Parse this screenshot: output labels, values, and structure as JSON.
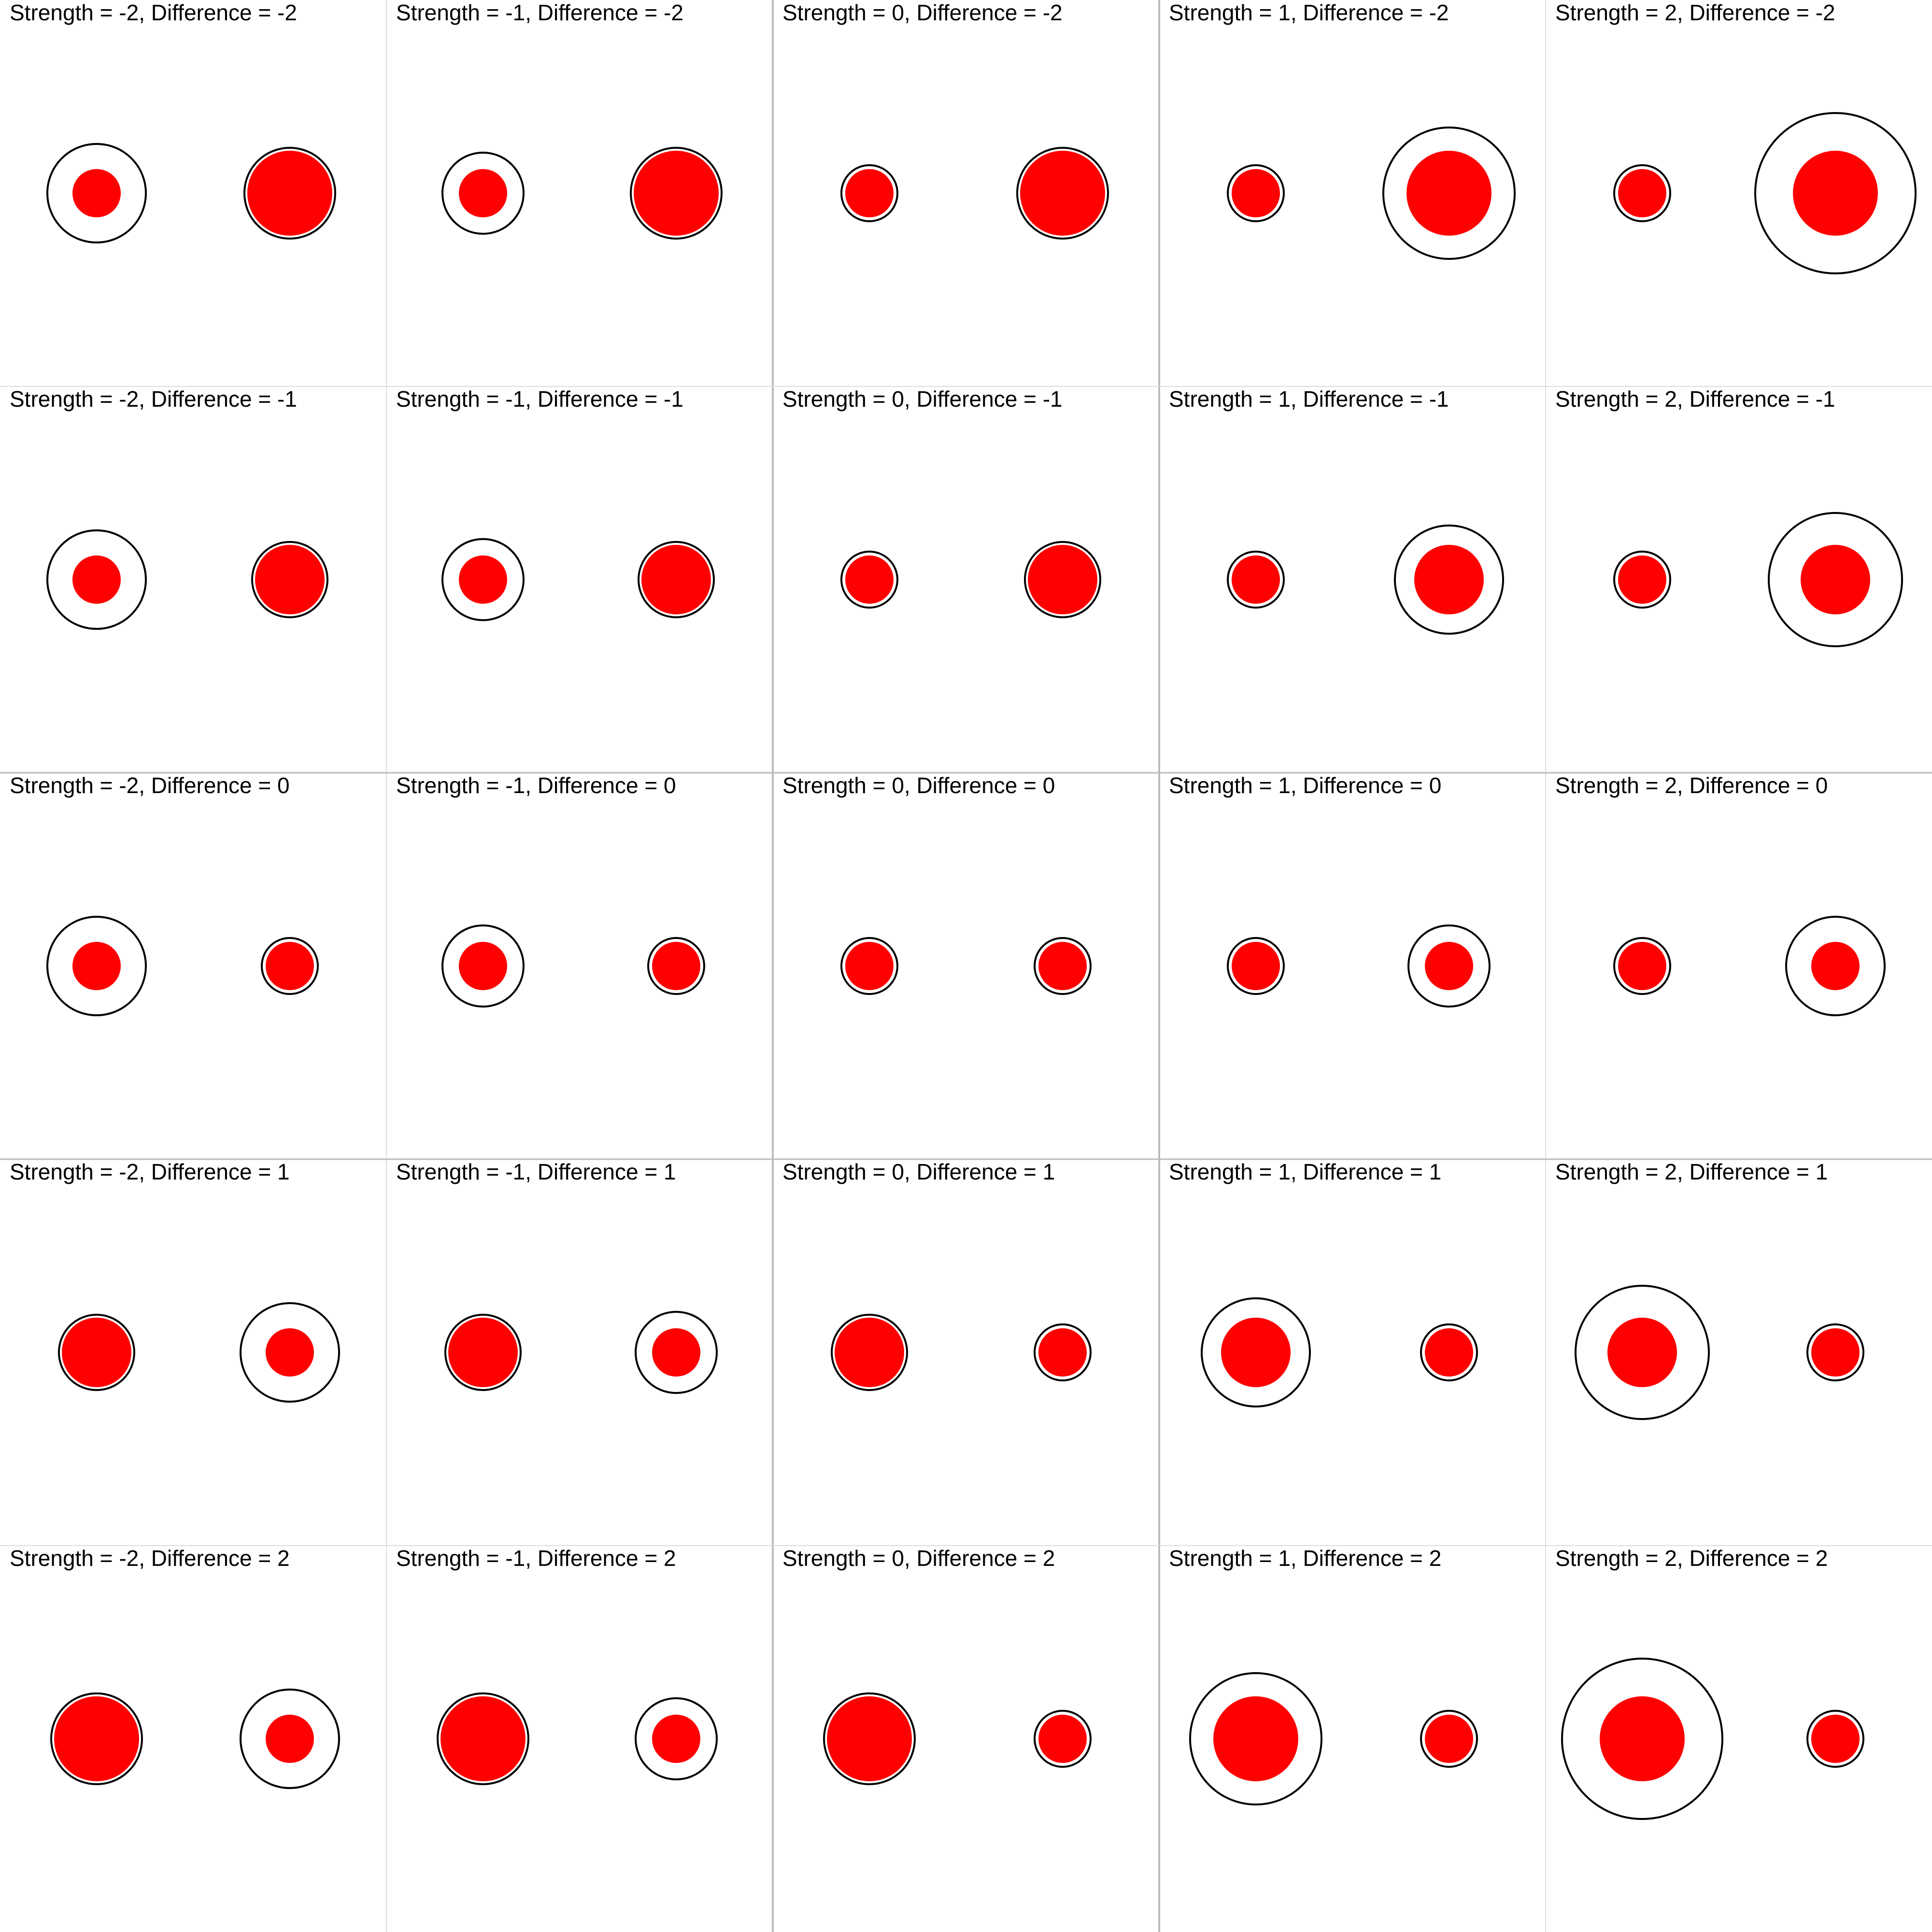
{
  "colors": {
    "background": "#ffffff",
    "separator": "#dddddd",
    "heavy_separator": "#bbbbbb",
    "fill": "#ff0000",
    "outline": "#000000",
    "text": "#000000"
  },
  "panels": [
    {
      "title": "Strength = -2, Difference = -2",
      "left": {
        "fill": 0.25,
        "ring": 0.51
      },
      "right": {
        "fill": 0.44,
        "ring": 0.47
      }
    },
    {
      "title": "Strength = -1, Difference = -2",
      "left": {
        "fill": 0.25,
        "ring": 0.42
      },
      "right": {
        "fill": 0.44,
        "ring": 0.47
      }
    },
    {
      "title": "Strength = 0, Difference = -2",
      "left": {
        "fill": 0.25,
        "ring": 0.29
      },
      "right": {
        "fill": 0.44,
        "ring": 0.47
      }
    },
    {
      "title": "Strength = 1, Difference = -2",
      "left": {
        "fill": 0.25,
        "ring": 0.29
      },
      "right": {
        "fill": 0.44,
        "ring": 0.68
      }
    },
    {
      "title": "Strength = 2, Difference = -2",
      "left": {
        "fill": 0.25,
        "ring": 0.29
      },
      "right": {
        "fill": 0.44,
        "ring": 0.83
      }
    },
    {
      "title": "Strength = -2, Difference = -1",
      "left": {
        "fill": 0.25,
        "ring": 0.51
      },
      "right": {
        "fill": 0.36,
        "ring": 0.39
      }
    },
    {
      "title": "Strength = -1, Difference = -1",
      "left": {
        "fill": 0.25,
        "ring": 0.42
      },
      "right": {
        "fill": 0.36,
        "ring": 0.39
      }
    },
    {
      "title": "Strength = 0, Difference = -1",
      "left": {
        "fill": 0.25,
        "ring": 0.29
      },
      "right": {
        "fill": 0.36,
        "ring": 0.39
      }
    },
    {
      "title": "Strength = 1, Difference = -1",
      "left": {
        "fill": 0.25,
        "ring": 0.29
      },
      "right": {
        "fill": 0.36,
        "ring": 0.56
      }
    },
    {
      "title": "Strength = 2, Difference = -1",
      "left": {
        "fill": 0.25,
        "ring": 0.29
      },
      "right": {
        "fill": 0.36,
        "ring": 0.69
      }
    },
    {
      "title": "Strength = -2, Difference = 0",
      "left": {
        "fill": 0.25,
        "ring": 0.51
      },
      "right": {
        "fill": 0.25,
        "ring": 0.29
      }
    },
    {
      "title": "Strength = -1, Difference = 0",
      "left": {
        "fill": 0.25,
        "ring": 0.42
      },
      "right": {
        "fill": 0.25,
        "ring": 0.29
      }
    },
    {
      "title": "Strength = 0, Difference = 0",
      "left": {
        "fill": 0.25,
        "ring": 0.29
      },
      "right": {
        "fill": 0.25,
        "ring": 0.29
      }
    },
    {
      "title": "Strength = 1, Difference = 0",
      "left": {
        "fill": 0.25,
        "ring": 0.29
      },
      "right": {
        "fill": 0.25,
        "ring": 0.42
      }
    },
    {
      "title": "Strength = 2, Difference = 0",
      "left": {
        "fill": 0.25,
        "ring": 0.29
      },
      "right": {
        "fill": 0.25,
        "ring": 0.51
      }
    },
    {
      "title": "Strength = -2, Difference = 1",
      "left": {
        "fill": 0.36,
        "ring": 0.39
      },
      "right": {
        "fill": 0.25,
        "ring": 0.51
      }
    },
    {
      "title": "Strength = -1, Difference = 1",
      "left": {
        "fill": 0.36,
        "ring": 0.39
      },
      "right": {
        "fill": 0.25,
        "ring": 0.42
      }
    },
    {
      "title": "Strength = 0, Difference = 1",
      "left": {
        "fill": 0.36,
        "ring": 0.39
      },
      "right": {
        "fill": 0.25,
        "ring": 0.29
      }
    },
    {
      "title": "Strength = 1, Difference = 1",
      "left": {
        "fill": 0.36,
        "ring": 0.56
      },
      "right": {
        "fill": 0.25,
        "ring": 0.29
      }
    },
    {
      "title": "Strength = 2, Difference = 1",
      "left": {
        "fill": 0.36,
        "ring": 0.69
      },
      "right": {
        "fill": 0.25,
        "ring": 0.29
      }
    },
    {
      "title": "Strength = -2, Difference = 2",
      "left": {
        "fill": 0.44,
        "ring": 0.47
      },
      "right": {
        "fill": 0.25,
        "ring": 0.51
      }
    },
    {
      "title": "Strength = -1, Difference = 2",
      "left": {
        "fill": 0.44,
        "ring": 0.47
      },
      "right": {
        "fill": 0.25,
        "ring": 0.42
      }
    },
    {
      "title": "Strength = 0, Difference = 2",
      "left": {
        "fill": 0.44,
        "ring": 0.47
      },
      "right": {
        "fill": 0.25,
        "ring": 0.29
      }
    },
    {
      "title": "Strength = 1, Difference = 2",
      "left": {
        "fill": 0.44,
        "ring": 0.68
      },
      "right": {
        "fill": 0.25,
        "ring": 0.29
      }
    },
    {
      "title": "Strength = 2, Difference = 2",
      "left": {
        "fill": 0.44,
        "ring": 0.83
      },
      "right": {
        "fill": 0.25,
        "ring": 0.29
      }
    }
  ]
}
